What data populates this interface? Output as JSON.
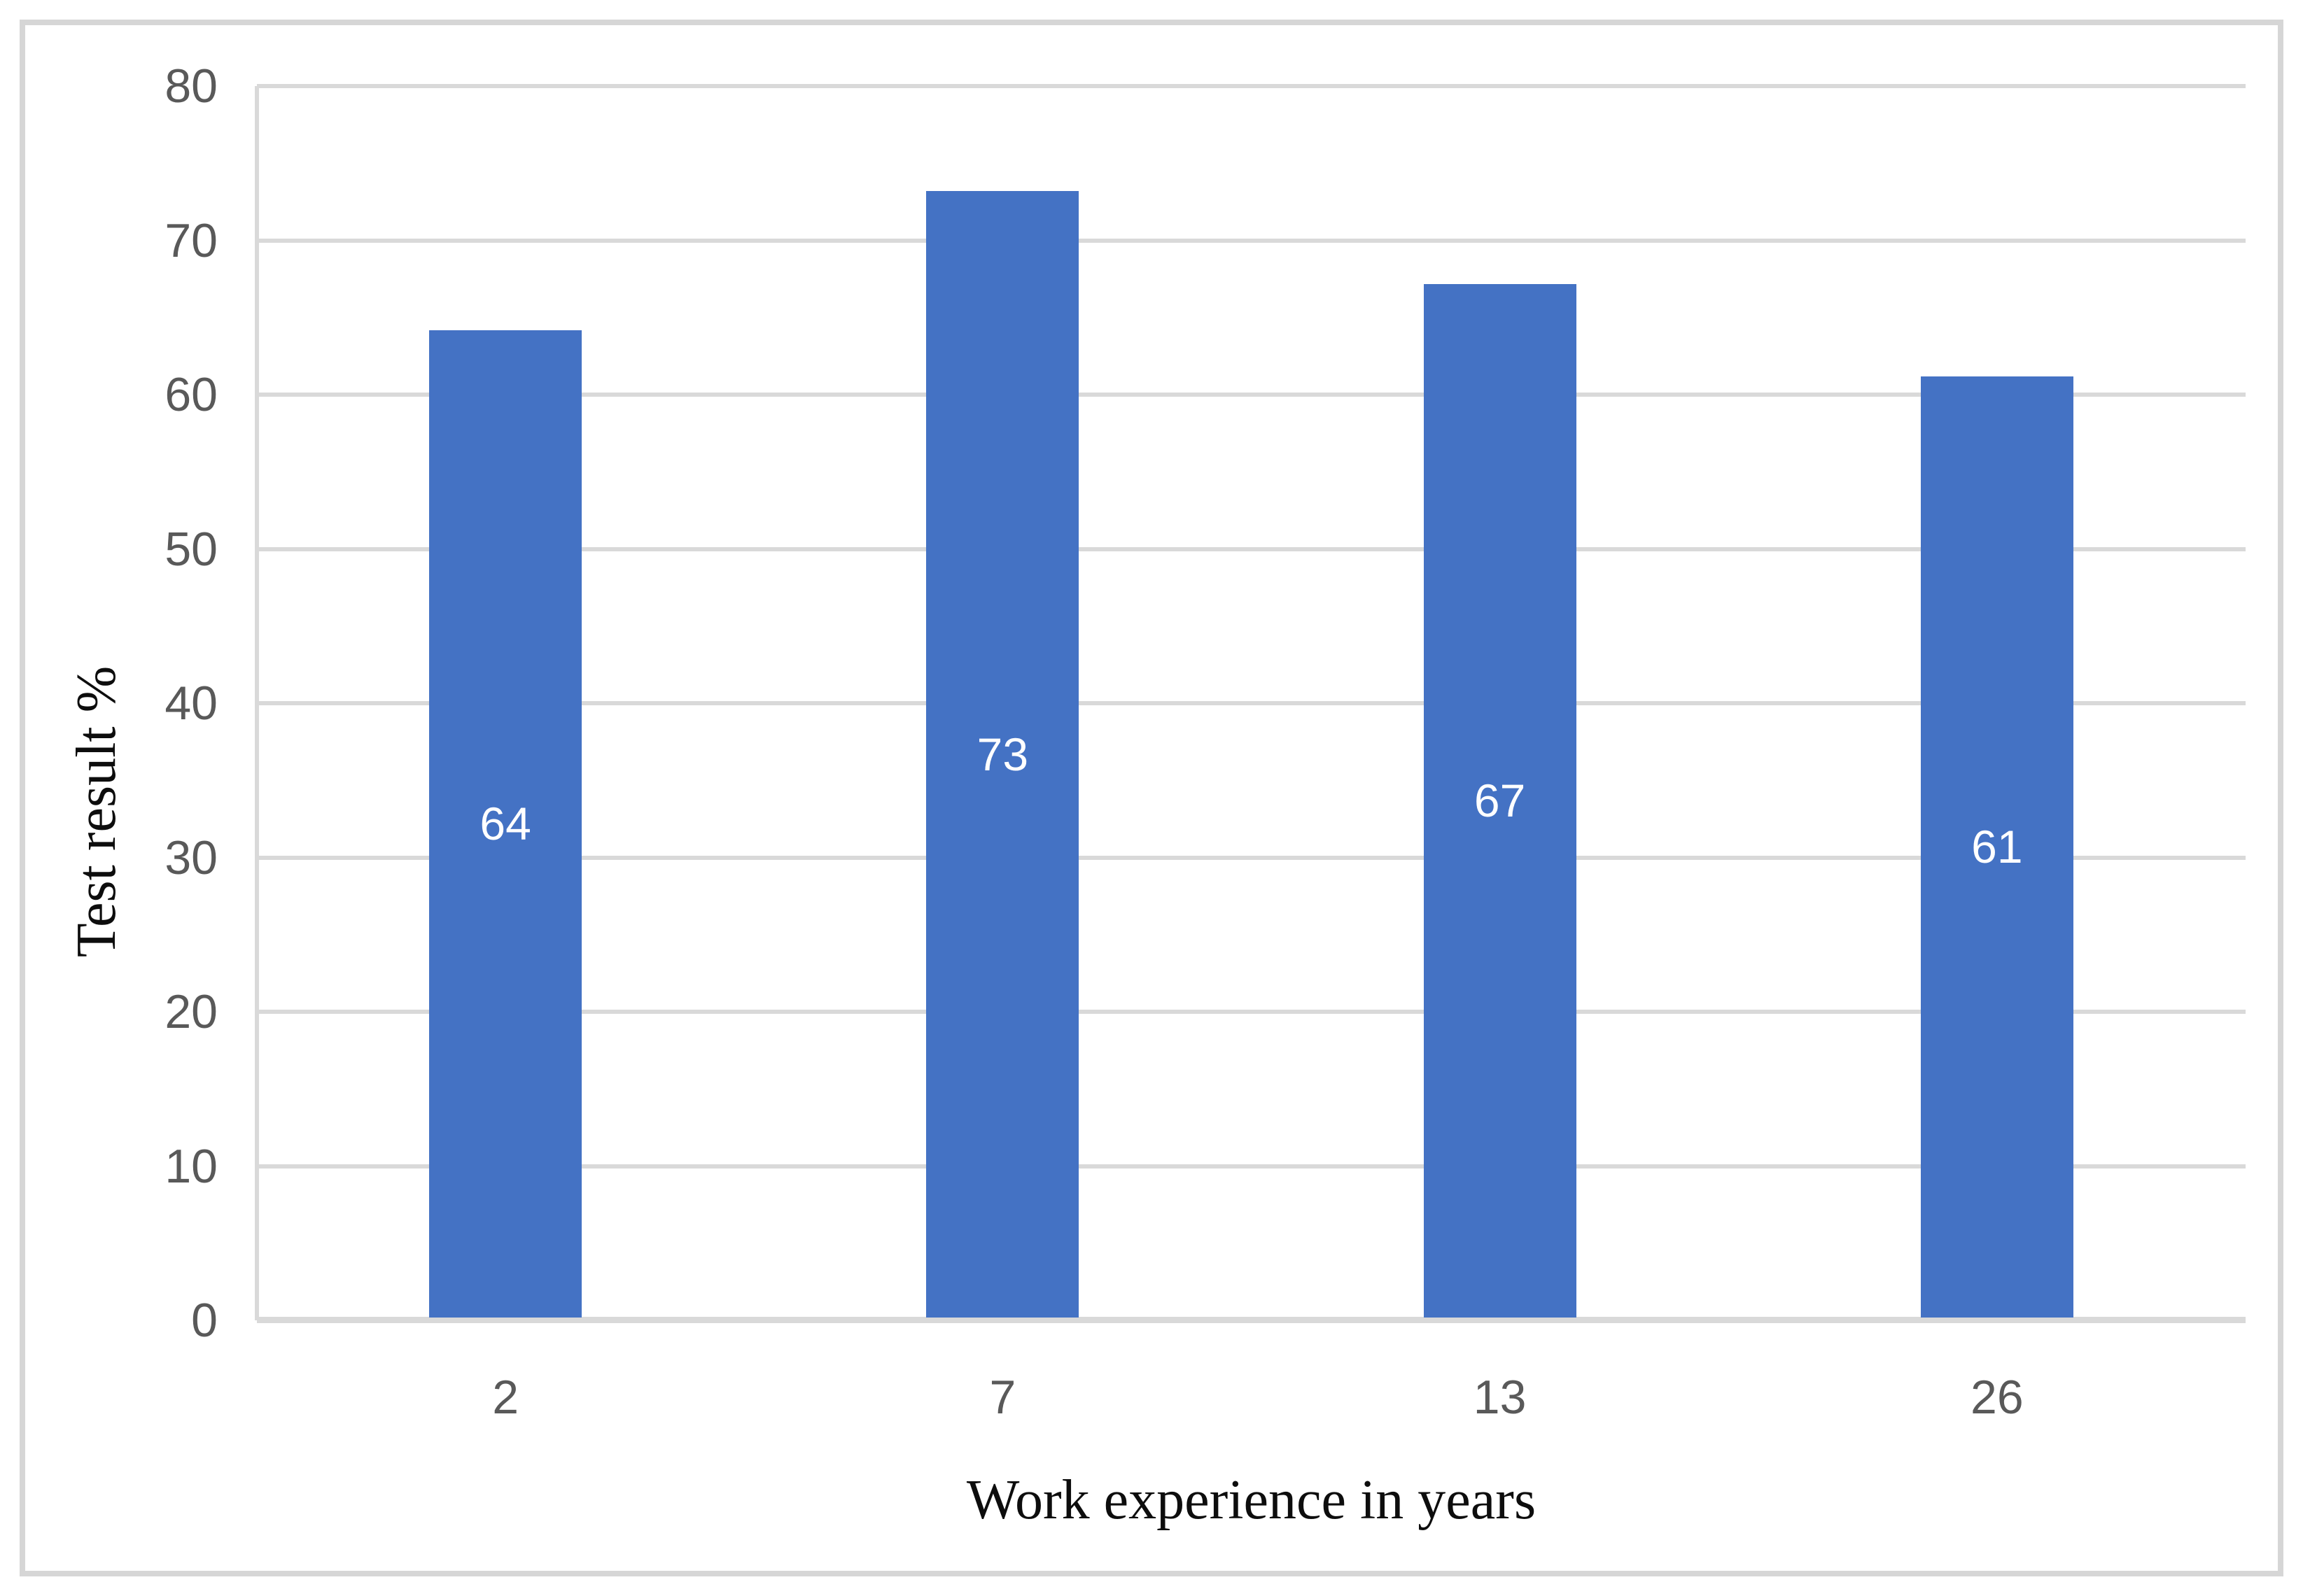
{
  "chart_data": {
    "type": "bar",
    "title": "",
    "categories": [
      "2",
      "7",
      "13",
      "26"
    ],
    "values": [
      64,
      73,
      67,
      61
    ],
    "data_labels": [
      "64",
      "73",
      "67",
      "61"
    ],
    "data_label_position": "inside-center",
    "xlabel": "Work experience in years",
    "ylabel": "Test result %",
    "ylim": [
      0,
      80
    ],
    "ytick_step": 10,
    "yticks": [
      "0",
      "10",
      "20",
      "30",
      "40",
      "50",
      "60",
      "70",
      "80"
    ],
    "grid": "horizontal",
    "legend": "none",
    "colors": {
      "bar": "#4472C4",
      "bar_label": "#FFFFFF",
      "gridline": "#D9D9D9",
      "axis_line": "#D9D9D9",
      "tick_label": "#595959",
      "axis_title": "#0D0D0D",
      "figure_border": "#D6D6D6",
      "background": "#FFFFFF"
    }
  }
}
